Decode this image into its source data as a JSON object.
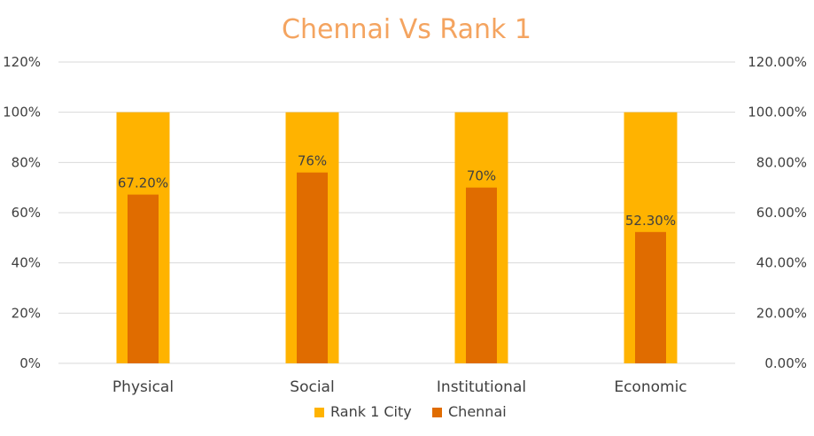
{
  "chart_data": {
    "type": "bar",
    "title": "Chennai Vs Rank 1",
    "categories": [
      "Physical",
      "Social",
      "Institutional",
      "Economic"
    ],
    "series": [
      {
        "name": "Rank 1 City",
        "values": [
          100,
          100,
          100,
          100
        ],
        "color": "#FFB300"
      },
      {
        "name": "Chennai",
        "values": [
          67.2,
          76,
          70,
          52.3
        ],
        "color": "#E06C00",
        "data_labels": [
          "67.20%",
          "76%",
          "70%",
          "52.30%"
        ]
      }
    ],
    "ylim": [
      0,
      120
    ],
    "yticks_left": [
      "0%",
      "20%",
      "40%",
      "60%",
      "80%",
      "100%",
      "120%"
    ],
    "yticks_right": [
      "0.00%",
      "20.00%",
      "40.00%",
      "60.00%",
      "80.00%",
      "100.00%",
      "120.00%"
    ],
    "grid": true,
    "legend_position": "bottom"
  }
}
